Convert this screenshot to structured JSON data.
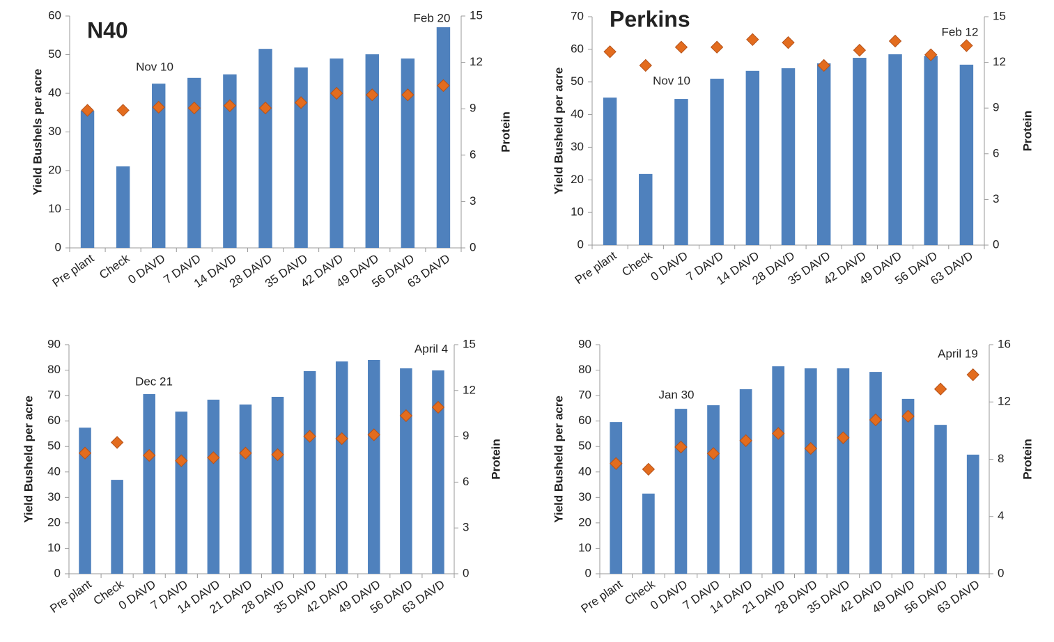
{
  "chart_data": [
    {
      "type": "bar",
      "title": "N40",
      "y_label": "Yield Bushels per acre",
      "y2_label": "Protein",
      "annotations": [
        "Nov 10",
        "Feb 20"
      ],
      "categories": [
        "Pre plant",
        "Check",
        "0 DAVD",
        "7 DAVD",
        "14 DAVD",
        "28 DAVD",
        "35 DAVD",
        "42 DAVD",
        "49 DAVD",
        "56 DAVD",
        "63 DAVD"
      ],
      "series": [
        {
          "color": "#4f81bd",
          "values": [
            35.5,
            21.1,
            42.5,
            44,
            44.9,
            51.5,
            46.7,
            49,
            50.1,
            49,
            57.1
          ]
        },
        {
          "type": "scatter",
          "axis": "y2",
          "color": "#e36c1e",
          "values": [
            8.9,
            8.9,
            9.1,
            9.05,
            9.2,
            9.05,
            9.4,
            10,
            9.9,
            9.9,
            10.5
          ]
        }
      ],
      "ylim": [
        0,
        60
      ],
      "yticks": [
        0,
        10,
        20,
        30,
        40,
        50,
        60
      ],
      "y2lim": [
        0,
        15
      ],
      "y2ticks": [
        0,
        3,
        6,
        9,
        12,
        15
      ]
    },
    {
      "type": "bar",
      "title": "Perkins",
      "y_label": "Yield Busheld per acre",
      "y2_label": "Protein",
      "annotations": [
        "Nov 10",
        "Feb 12"
      ],
      "categories": [
        "Pre plant",
        "Check",
        "0 DAVD",
        "7 DAVD",
        "14 DAVD",
        "28 DAVD",
        "35 DAVD",
        "42 DAVD",
        "49 DAVD",
        "56 DAVD",
        "63 DAVD"
      ],
      "series": [
        {
          "color": "#4f81bd",
          "values": [
            45.2,
            21.8,
            44.8,
            51,
            53.4,
            54.2,
            55.7,
            57.4,
            58.5,
            58,
            55.3
          ]
        },
        {
          "type": "scatter",
          "axis": "y2",
          "color": "#e36c1e",
          "values": [
            12.7,
            11.8,
            13,
            13,
            13.5,
            13.3,
            11.8,
            12.8,
            13.4,
            12.5,
            13.1
          ]
        }
      ],
      "ylim": [
        0,
        70
      ],
      "yticks": [
        0,
        10,
        20,
        30,
        40,
        50,
        60,
        70
      ],
      "y2lim": [
        0,
        15
      ],
      "y2ticks": [
        0,
        3,
        6,
        9,
        12,
        15
      ]
    },
    {
      "type": "bar",
      "y_label": "Yield Busheld per acre",
      "y2_label": "Protein",
      "annotations": [
        "Dec 21",
        "April 4"
      ],
      "categories": [
        "Pre plant",
        "Check",
        "0 DAVD",
        "7 DAVD",
        "14 DAVD",
        "21 DAVD",
        "28 DAVD",
        "35 DAVD",
        "42 DAVD",
        "49 DAVD",
        "56 DAVD",
        "63 DAVD"
      ],
      "series": [
        {
          "color": "#4f81bd",
          "values": [
            57.4,
            36.9,
            70.6,
            63.7,
            68.4,
            66.5,
            69.5,
            79.6,
            83.4,
            84,
            80.7,
            79.9
          ]
        },
        {
          "type": "scatter",
          "axis": "y2",
          "color": "#e36c1e",
          "values": [
            7.9,
            8.6,
            7.75,
            7.4,
            7.6,
            7.9,
            7.8,
            9,
            8.85,
            9.1,
            10.35,
            10.9
          ]
        }
      ],
      "ylim": [
        0,
        90
      ],
      "yticks": [
        0,
        10,
        20,
        30,
        40,
        50,
        60,
        70,
        80,
        90
      ],
      "y2lim": [
        0,
        15
      ],
      "y2ticks": [
        0,
        3,
        6,
        9,
        12,
        15
      ]
    },
    {
      "type": "bar",
      "y_label": "Yield Busheld per acre",
      "y2_label": "Protein",
      "annotations": [
        "Jan 30",
        "April 19"
      ],
      "categories": [
        "Pre plant",
        "Check",
        "0 DAVD",
        "7 DAVD",
        "14 DAVD",
        "21 DAVD",
        "28 DAVD",
        "35 DAVD",
        "42 DAVD",
        "49 DAVD",
        "56 DAVD",
        "63 DAVD"
      ],
      "series": [
        {
          "color": "#4f81bd",
          "values": [
            59.6,
            31.5,
            64.8,
            66.2,
            72.5,
            81.5,
            80.7,
            80.7,
            79.3,
            68.7,
            58.5,
            46.8
          ]
        },
        {
          "type": "scatter",
          "axis": "y2",
          "color": "#e36c1e",
          "values": [
            7.7,
            7.3,
            8.85,
            8.4,
            9.3,
            9.8,
            8.75,
            9.5,
            10.75,
            11,
            12.9,
            13.9
          ]
        }
      ],
      "ylim": [
        0,
        90
      ],
      "yticks": [
        0,
        10,
        20,
        30,
        40,
        50,
        60,
        70,
        80,
        90
      ],
      "y2lim": [
        0,
        16
      ],
      "y2ticks": [
        0,
        4,
        8,
        12,
        16
      ]
    }
  ]
}
